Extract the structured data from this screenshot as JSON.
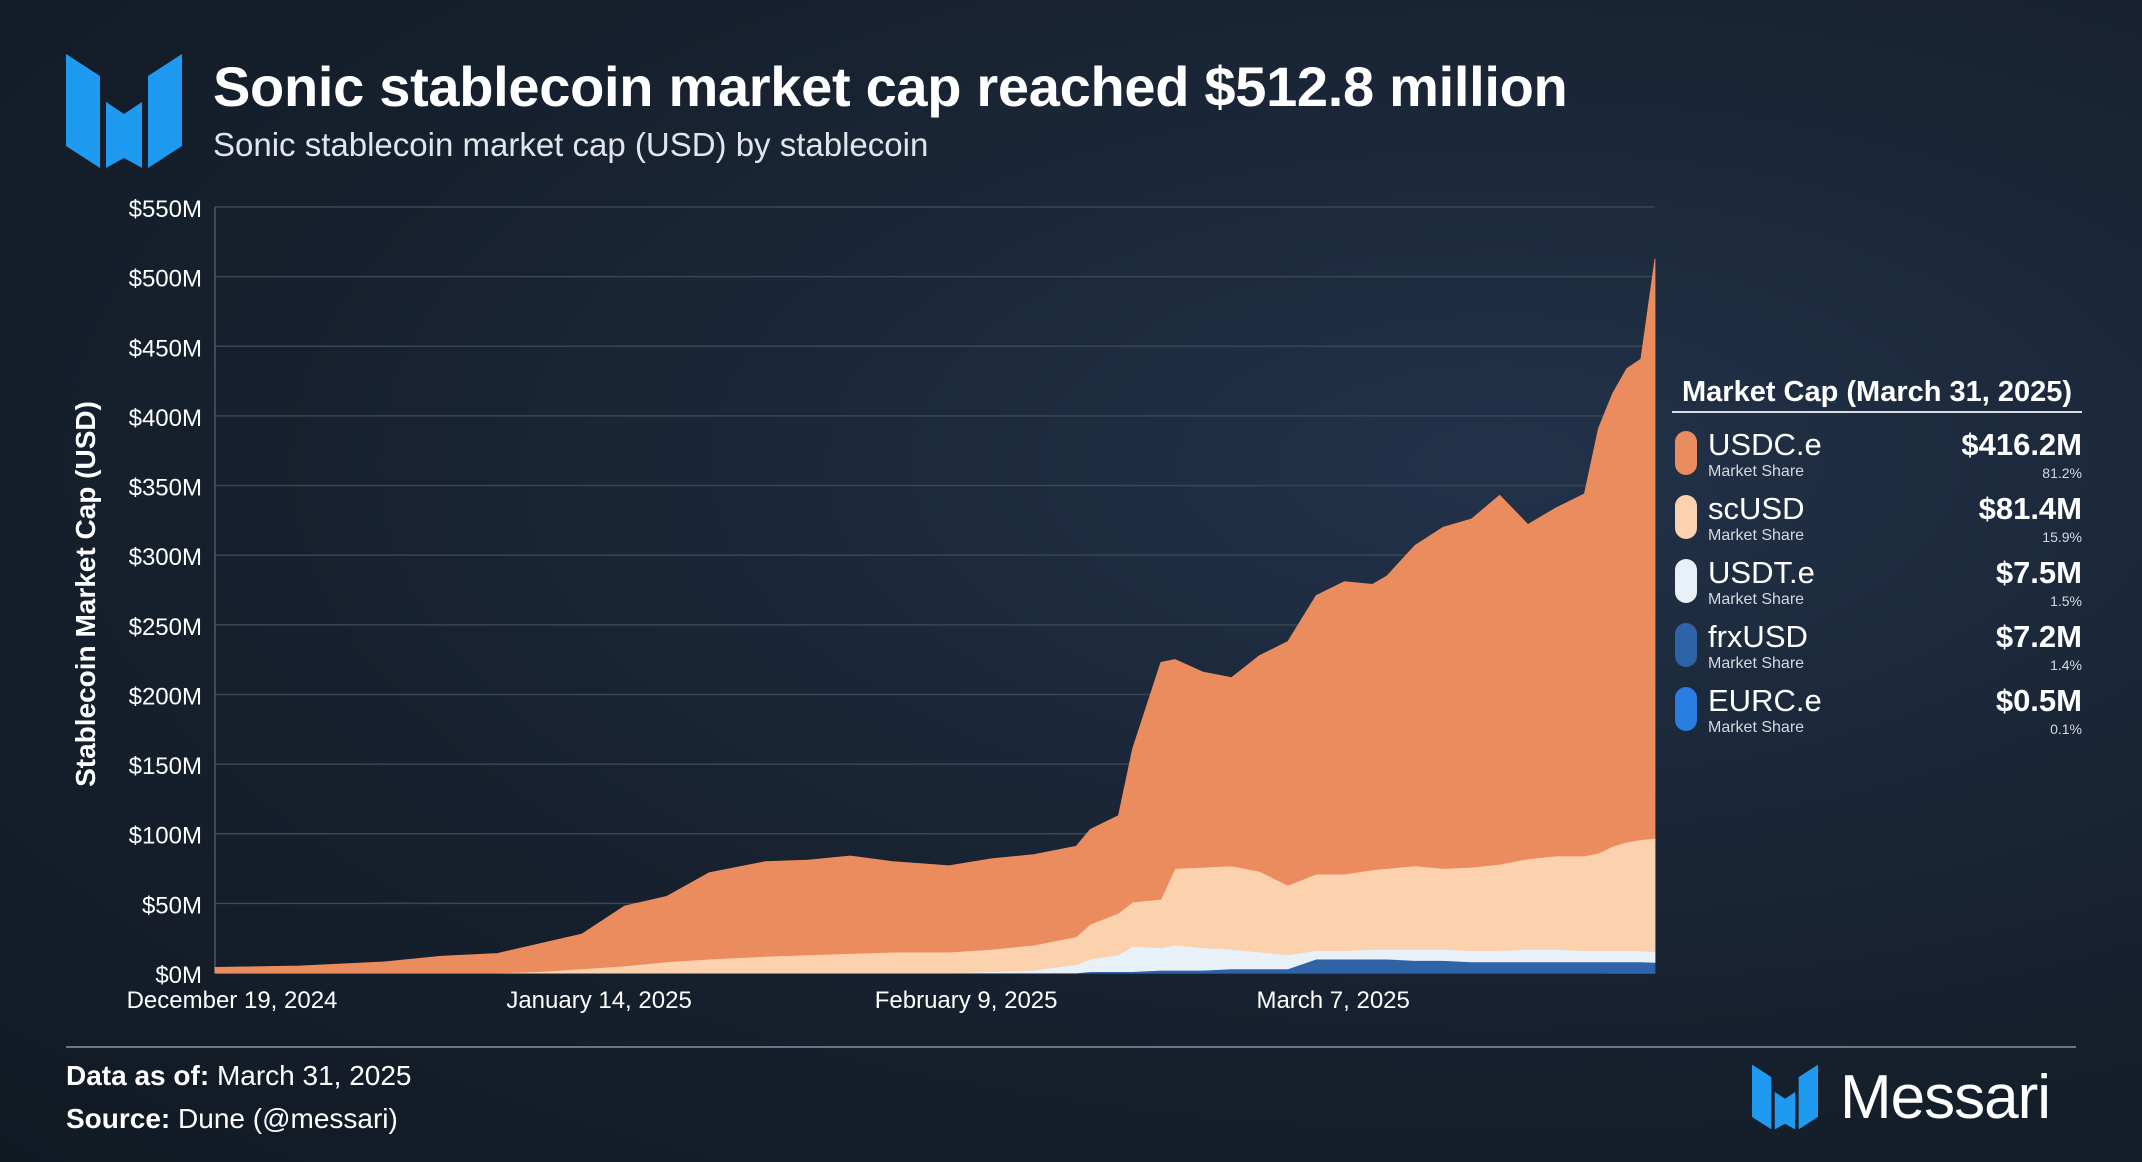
{
  "header": {
    "title": "Sonic stablecoin market cap reached $512.8 million",
    "subtitle": "Sonic stablecoin market cap (USD) by stablecoin"
  },
  "chart_data": {
    "type": "area",
    "stacked": true,
    "ylabel": "Stablecoin Market Cap (USD)",
    "ylim": [
      0,
      550
    ],
    "y_unit": "$M",
    "y_ticks": [
      "$0M",
      "$50M",
      "$100M",
      "$150M",
      "$200M",
      "$250M",
      "$300M",
      "$350M",
      "$400M",
      "$450M",
      "$500M",
      "$550M"
    ],
    "x_start": "2024-12-19",
    "x_end": "2025-03-31",
    "x_ticks": [
      {
        "date": "2024-12-19",
        "label": "December 19, 2024"
      },
      {
        "date": "2025-01-14",
        "label": "January 14, 2025"
      },
      {
        "date": "2025-02-09",
        "label": "February 9, 2025"
      },
      {
        "date": "2025-03-07",
        "label": "March 7, 2025"
      }
    ],
    "grid": true,
    "legend_position": "right",
    "dates": [
      "2024-12-19",
      "2024-12-25",
      "2024-12-31",
      "2025-01-04",
      "2025-01-08",
      "2025-01-11",
      "2025-01-14",
      "2025-01-17",
      "2025-01-20",
      "2025-01-23",
      "2025-01-27",
      "2025-01-30",
      "2025-02-02",
      "2025-02-05",
      "2025-02-09",
      "2025-02-12",
      "2025-02-15",
      "2025-02-18",
      "2025-02-19",
      "2025-02-21",
      "2025-02-22",
      "2025-02-24",
      "2025-02-25",
      "2025-02-27",
      "2025-03-01",
      "2025-03-03",
      "2025-03-05",
      "2025-03-07",
      "2025-03-09",
      "2025-03-11",
      "2025-03-12",
      "2025-03-14",
      "2025-03-16",
      "2025-03-18",
      "2025-03-20",
      "2025-03-22",
      "2025-03-24",
      "2025-03-26",
      "2025-03-27",
      "2025-03-28",
      "2025-03-29",
      "2025-03-30",
      "2025-03-31"
    ],
    "series": [
      {
        "name": "EURC.e",
        "color": "#2a7de1",
        "values": [
          0,
          0,
          0,
          0,
          0,
          0,
          0,
          0,
          0,
          0,
          0,
          0,
          0,
          0,
          0,
          0,
          0,
          0,
          0,
          0,
          0,
          0,
          0,
          0,
          0,
          0,
          0,
          0,
          0,
          0,
          0,
          0,
          0,
          0,
          0,
          0,
          0,
          0,
          0,
          0.5,
          0.5,
          0.5,
          0.5
        ]
      },
      {
        "name": "frxUSD",
        "color": "#2f63a8",
        "values": [
          0,
          0,
          0,
          0,
          0,
          0,
          0,
          0,
          0,
          0,
          0,
          0,
          0,
          0,
          0,
          0,
          0,
          0,
          1,
          1,
          1,
          2,
          2,
          2,
          3,
          3,
          3,
          10,
          10,
          10,
          10,
          9,
          9,
          8,
          8,
          8,
          8,
          8,
          8,
          7.5,
          7.5,
          7.5,
          7.2
        ]
      },
      {
        "name": "USDT.e",
        "color": "#e9f1f8",
        "values": [
          0,
          0,
          0,
          0,
          0,
          0,
          0,
          0,
          0,
          0,
          0,
          0,
          0,
          0,
          0,
          1,
          2,
          6,
          9,
          12,
          18,
          16,
          18,
          16,
          14,
          12,
          10,
          6,
          6,
          7,
          7,
          8,
          8,
          8,
          8,
          9,
          9,
          8,
          8,
          8,
          8,
          7.8,
          7.5
        ]
      },
      {
        "name": "scUSD",
        "color": "#fcd2ae",
        "values": [
          0,
          0,
          0,
          0,
          0,
          1,
          3,
          5,
          8,
          10,
          12,
          13,
          14,
          15,
          15,
          16,
          18,
          20,
          25,
          30,
          32,
          35,
          55,
          58,
          60,
          58,
          50,
          55,
          55,
          57,
          58,
          60,
          58,
          60,
          62,
          65,
          67,
          68,
          70,
          75,
          78,
          80,
          81.4
        ]
      },
      {
        "name": "USDC.e",
        "color": "#eb8c5f",
        "values": [
          4,
          5,
          8,
          12,
          14,
          20,
          25,
          43,
          47,
          62,
          68,
          68,
          70,
          65,
          62,
          65,
          65,
          65,
          68,
          70,
          110,
          170,
          150,
          140,
          135,
          155,
          175,
          200,
          210,
          205,
          210,
          230,
          245,
          250,
          265,
          240,
          250,
          260,
          305,
          325,
          340,
          345,
          416.2
        ]
      }
    ]
  },
  "legend": {
    "title": "Market Cap (March 31, 2025)",
    "items": [
      {
        "name": "USDC.e",
        "sub": "Market Share",
        "value": "$416.2M",
        "share": "81.2%",
        "color": "#eb8c5f"
      },
      {
        "name": "scUSD",
        "sub": "Market Share",
        "value": "$81.4M",
        "share": "15.9%",
        "color": "#fcd2ae"
      },
      {
        "name": "USDT.e",
        "sub": "Market Share",
        "value": "$7.5M",
        "share": "1.5%",
        "color": "#e9f1f8"
      },
      {
        "name": "frxUSD",
        "sub": "Market Share",
        "value": "$7.2M",
        "share": "1.4%",
        "color": "#2f63a8"
      },
      {
        "name": "EURC.e",
        "sub": "Market Share",
        "value": "$0.5M",
        "share": "0.1%",
        "color": "#2a7de1"
      }
    ]
  },
  "footer": {
    "data_label": "Data as of:",
    "data_value": "March 31, 2025",
    "source_label": "Source:",
    "source_value": "Dune (@messari)"
  },
  "brand": {
    "name": "Messari",
    "logo_icon": "messari-logo-icon",
    "accent": "#1e9bf0"
  }
}
